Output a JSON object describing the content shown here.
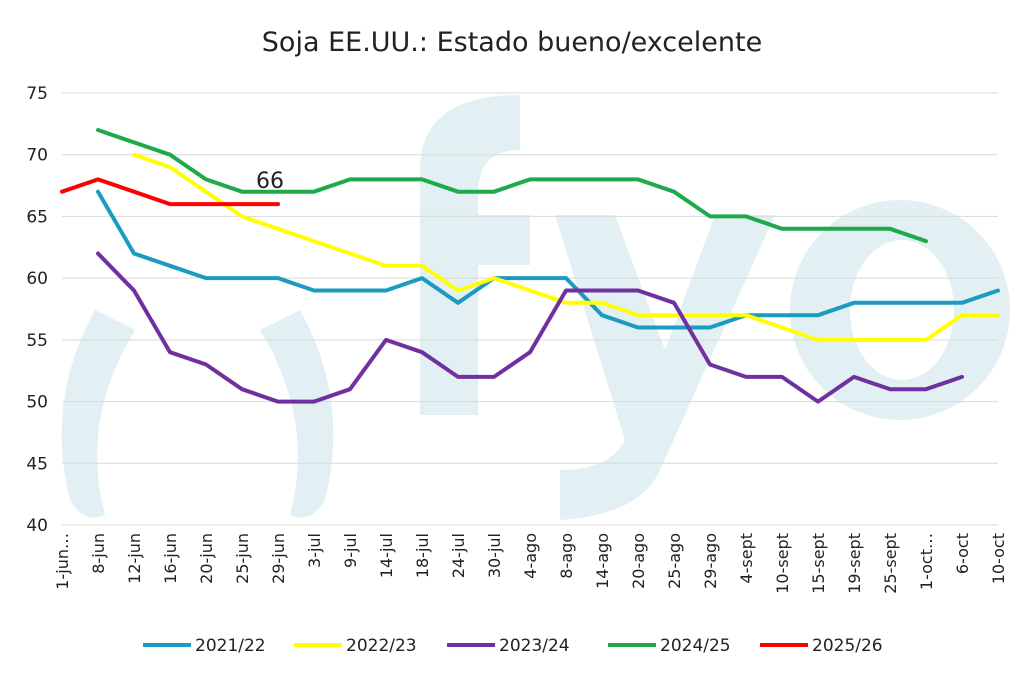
{
  "chart_data": {
    "type": "line",
    "title": "Soja EE.UU.: Estado bueno/excelente",
    "ylim": [
      40,
      75
    ],
    "yticks": [
      40,
      45,
      50,
      55,
      60,
      65,
      70,
      75
    ],
    "grid": true,
    "legend_position": "bottom",
    "watermark": "fyo",
    "categories": [
      "1-jun…",
      "8-jun",
      "12-jun",
      "16-jun",
      "20-jun",
      "25-jun",
      "29-jun",
      "3-jul",
      "9-jul",
      "14-jul",
      "18-jul",
      "24-jul",
      "30-jul",
      "4-ago",
      "8-ago",
      "14-ago",
      "20-ago",
      "25-ago",
      "29-ago",
      "4-sept",
      "10-sept",
      "15-sept",
      "19-sept",
      "25-sept",
      "1-oct…",
      "6-oct",
      "10-oct"
    ],
    "series": [
      {
        "name": "2021/22",
        "color": "#1a9bbf",
        "values": [
          null,
          67,
          62,
          61,
          60,
          60,
          60,
          59,
          59,
          59,
          60,
          58,
          60,
          60,
          60,
          57,
          56,
          56,
          56,
          57,
          57,
          57,
          58,
          58,
          58,
          58,
          59
        ]
      },
      {
        "name": "2022/23",
        "color": "#ffff00",
        "values": [
          null,
          null,
          70,
          69,
          67,
          65,
          64,
          63,
          62,
          61,
          61,
          59,
          60,
          59,
          58,
          58,
          57,
          57,
          57,
          57,
          56,
          55,
          55,
          55,
          55,
          57,
          57
        ]
      },
      {
        "name": "2023/24",
        "color": "#7030a0",
        "values": [
          null,
          62,
          59,
          54,
          53,
          51,
          50,
          50,
          51,
          55,
          54,
          52,
          52,
          54,
          59,
          59,
          59,
          58,
          53,
          52,
          52,
          50,
          52,
          51,
          51,
          52,
          null
        ]
      },
      {
        "name": "2024/25",
        "color": "#1daa4a",
        "values": [
          null,
          72,
          71,
          70,
          68,
          67,
          67,
          67,
          68,
          68,
          68,
          67,
          67,
          68,
          68,
          68,
          68,
          67,
          65,
          65,
          64,
          64,
          64,
          64,
          63,
          null,
          null
        ]
      },
      {
        "name": "2025/26",
        "color": "#ff0000",
        "values": [
          67,
          68,
          67,
          66,
          66,
          66,
          66,
          null,
          null,
          null,
          null,
          null,
          null,
          null,
          null,
          null,
          null,
          null,
          null,
          null,
          null,
          null,
          null,
          null,
          null,
          null,
          null
        ]
      }
    ],
    "annotations": [
      {
        "text": "66",
        "x": "29-jun",
        "series": "2025/26"
      }
    ]
  }
}
